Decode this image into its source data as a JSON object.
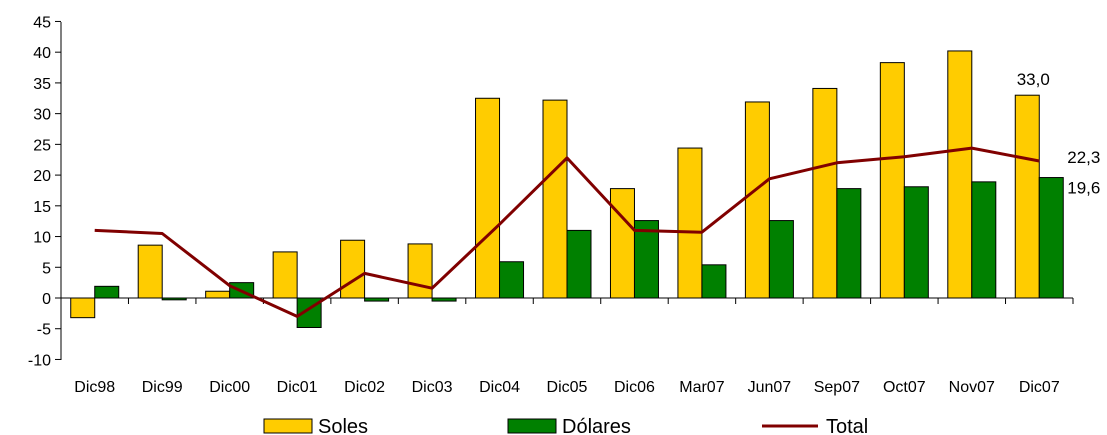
{
  "chart_data": {
    "type": "bar",
    "categories": [
      "Dic98",
      "Dic99",
      "Dic00",
      "Dic01",
      "Dic02",
      "Dic03",
      "Dic04",
      "Dic05",
      "Dic06",
      "Mar07",
      "Jun07",
      "Sep07",
      "Oct07",
      "Nov07",
      "Dic07"
    ],
    "series": [
      {
        "name": "Soles",
        "type": "bar",
        "color": "#ffcc00",
        "values": [
          -3.2,
          8.6,
          1.1,
          7.5,
          9.4,
          8.8,
          32.5,
          32.2,
          17.8,
          24.4,
          31.9,
          34.1,
          38.3,
          40.2,
          33.0
        ]
      },
      {
        "name": "Dólares",
        "type": "bar",
        "color": "#008000",
        "values": [
          1.9,
          -0.3,
          2.5,
          -4.8,
          -0.5,
          -0.5,
          5.9,
          11.0,
          12.6,
          5.4,
          12.6,
          17.8,
          18.1,
          18.9,
          19.6
        ]
      },
      {
        "name": "Total",
        "type": "line",
        "color": "#800000",
        "values": [
          11.0,
          10.5,
          2.0,
          -3.0,
          4.0,
          1.6,
          12.0,
          22.8,
          11.0,
          10.7,
          19.4,
          22.0,
          23.0,
          24.4,
          22.3
        ]
      }
    ],
    "data_labels": [
      {
        "series": "Soles",
        "category": "Dic07",
        "text": "33,0"
      },
      {
        "series": "Total",
        "category": "Dic07",
        "text": "22,3"
      },
      {
        "series": "Dólares",
        "category": "Dic07",
        "text": "19,6"
      }
    ],
    "ylim": [
      -10,
      45
    ],
    "yticks": [
      -10,
      -5,
      0,
      5,
      10,
      15,
      20,
      25,
      30,
      35,
      40,
      45
    ],
    "title": "",
    "xlabel": "",
    "ylabel": "",
    "grid": false,
    "legend": "bottom"
  }
}
